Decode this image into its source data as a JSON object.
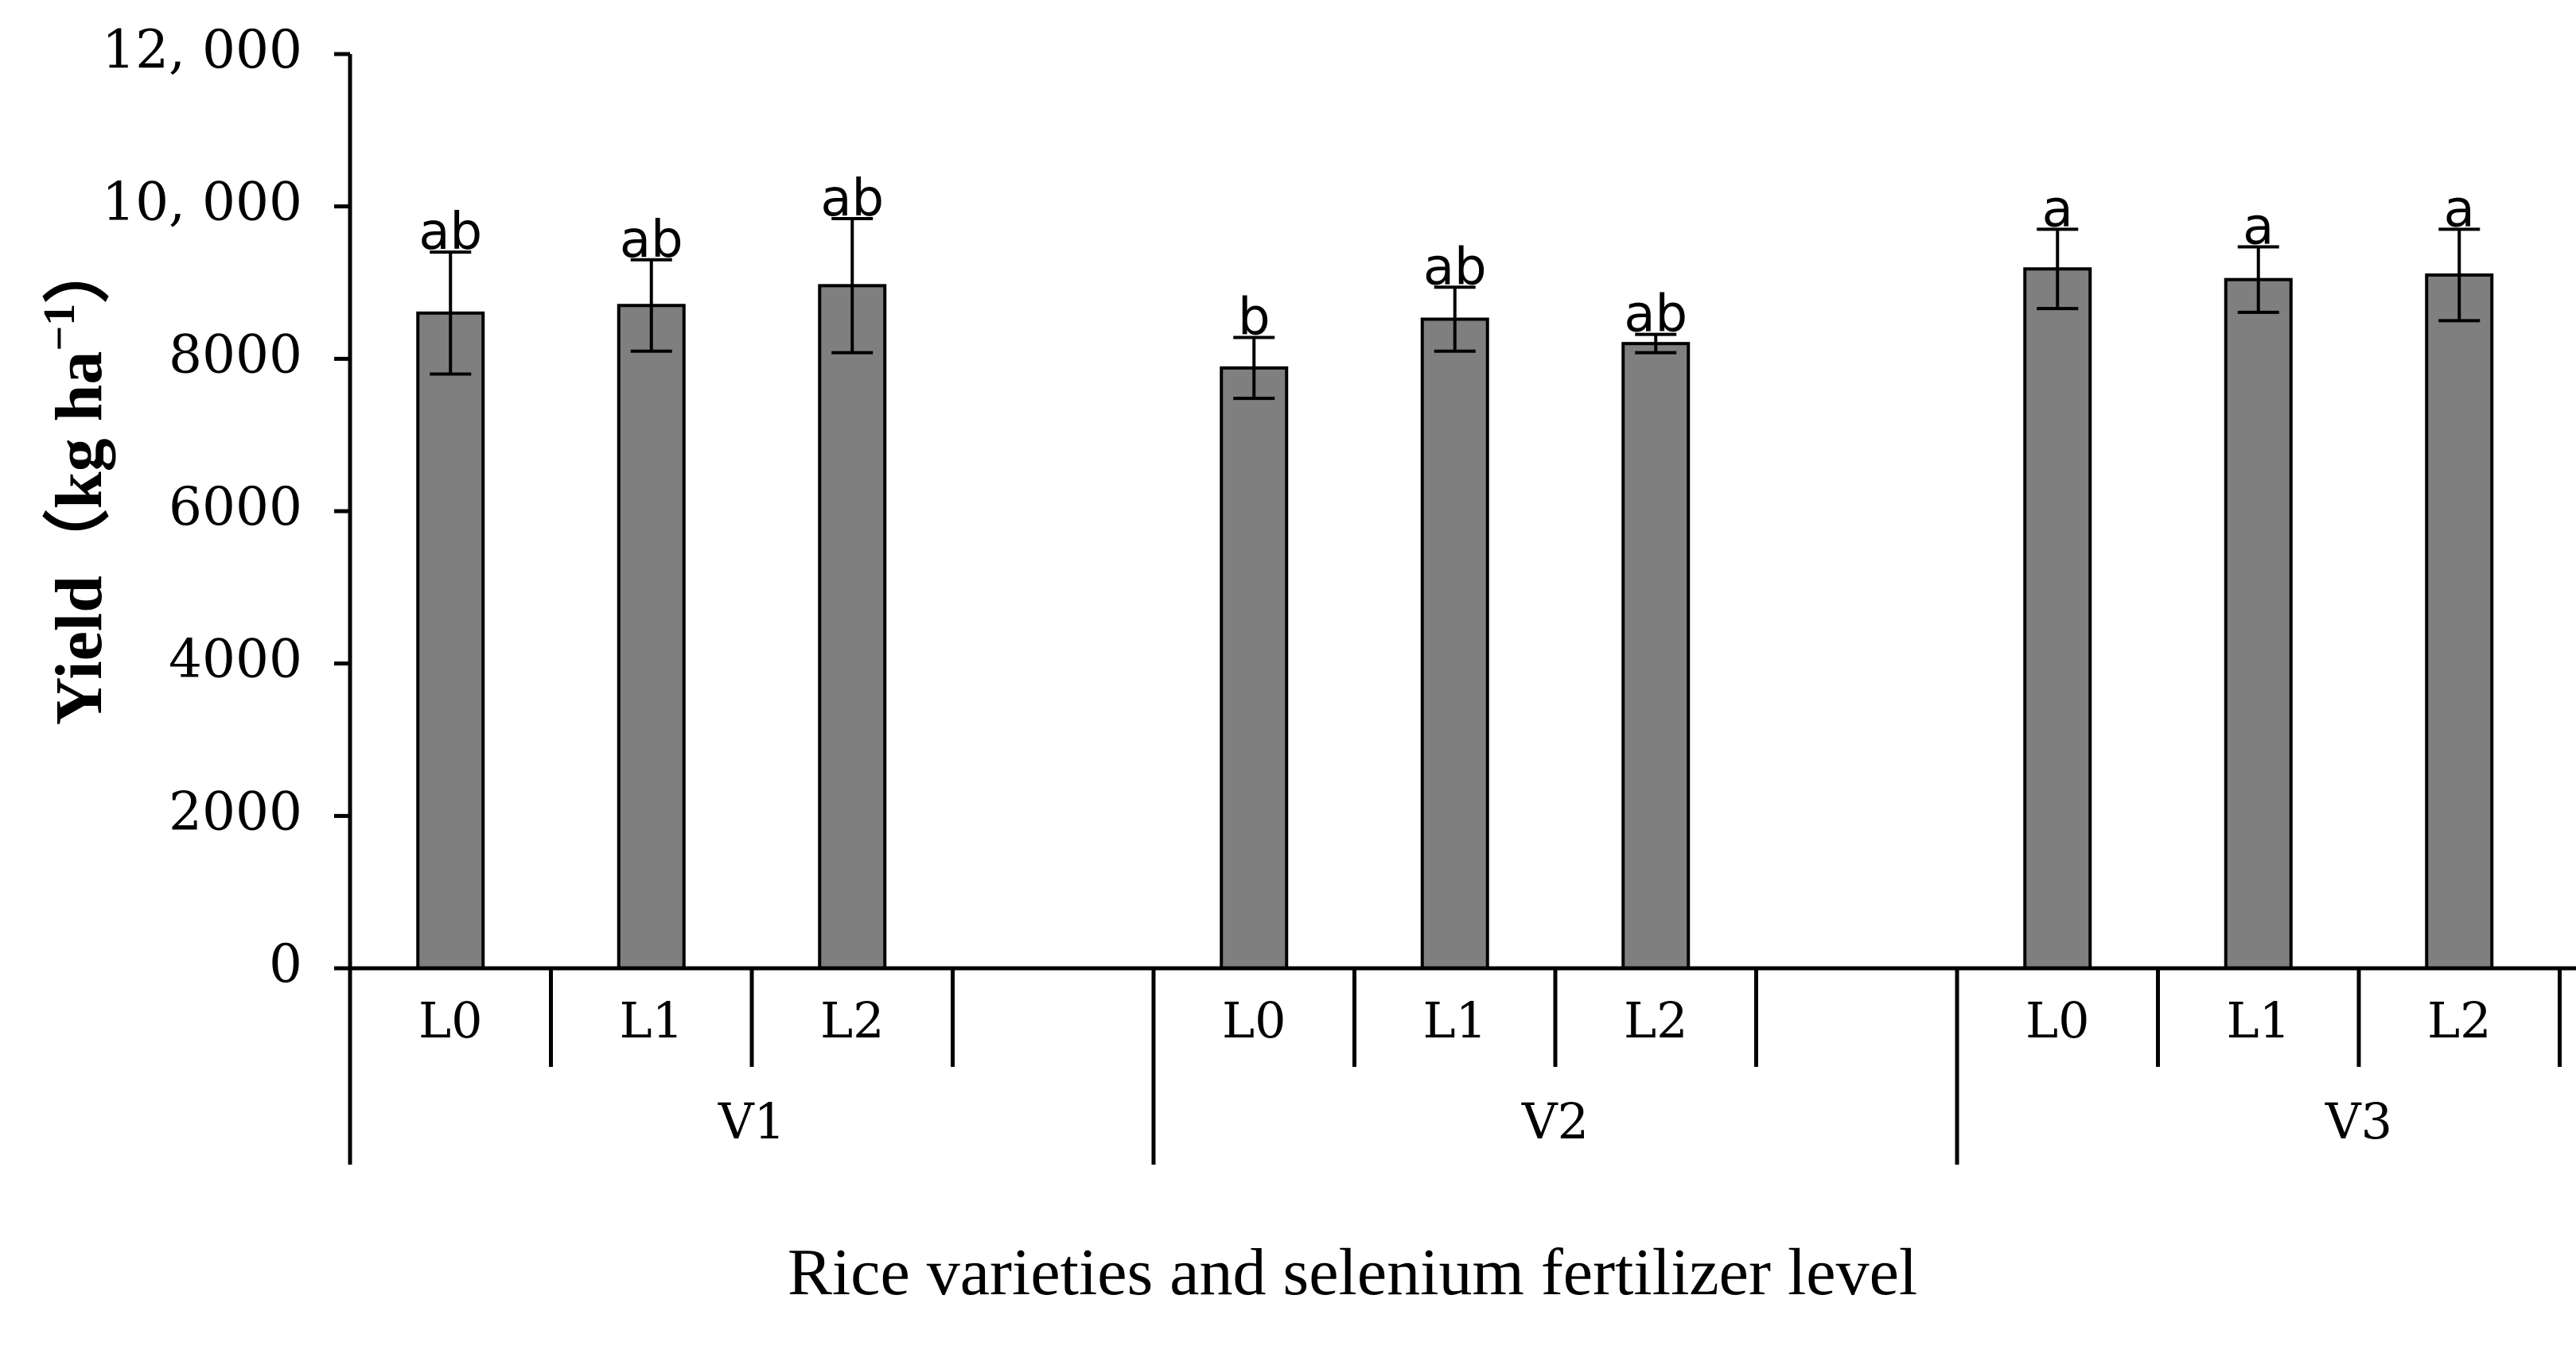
{
  "chart_data": {
    "type": "bar",
    "xlabel": "Rice varieties and selenium fertilizer level",
    "ylabel_main": "Yield（kg ha",
    "ylabel_sup": "−1",
    "ylabel_close": "）",
    "ylim": [
      0,
      12000
    ],
    "yticks": [
      {
        "value": 0,
        "label": "0"
      },
      {
        "value": 2000,
        "label": "2000"
      },
      {
        "value": 4000,
        "label": "4000"
      },
      {
        "value": 6000,
        "label": "6000"
      },
      {
        "value": 8000,
        "label": "8000"
      },
      {
        "value": 10000,
        "label": "10, 000"
      },
      {
        "value": 12000,
        "label": "12, 000"
      }
    ],
    "groups": [
      {
        "name": "V1",
        "bars": [
          {
            "level": "L0",
            "value": 8600,
            "err": 800,
            "sig": "ab"
          },
          {
            "level": "L1",
            "value": 8700,
            "err": 600,
            "sig": "ab"
          },
          {
            "level": "L2",
            "value": 8960,
            "err": 880,
            "sig": "ab"
          }
        ]
      },
      {
        "name": "V2",
        "bars": [
          {
            "level": "L0",
            "value": 7880,
            "err": 400,
            "sig": "b"
          },
          {
            "level": "L1",
            "value": 8520,
            "err": 420,
            "sig": "ab"
          },
          {
            "level": "L2",
            "value": 8200,
            "err": 120,
            "sig": "ab"
          }
        ]
      },
      {
        "name": "V3",
        "bars": [
          {
            "level": "L0",
            "value": 9180,
            "err": 520,
            "sig": "a"
          },
          {
            "level": "L1",
            "value": 9040,
            "err": 430,
            "sig": "a"
          },
          {
            "level": "L2",
            "value": 9100,
            "err": 600,
            "sig": "a"
          }
        ]
      }
    ],
    "bar_color": "#7f7f7f",
    "grid": false,
    "legend": "none"
  }
}
